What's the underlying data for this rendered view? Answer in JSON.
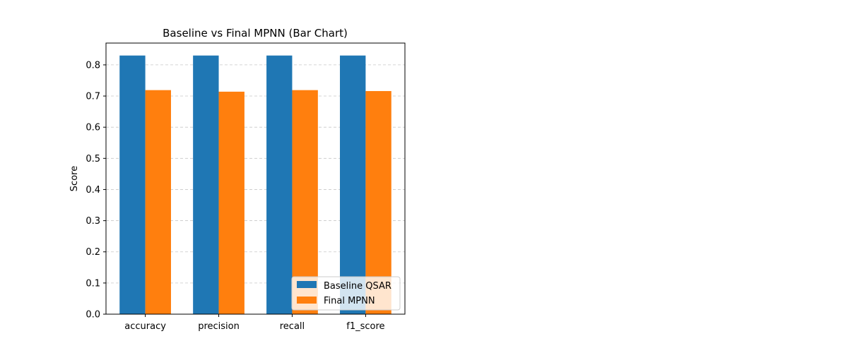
{
  "chart_data": {
    "type": "bar",
    "title": "Baseline vs Final MPNN (Bar Chart)",
    "xlabel": "",
    "ylabel": "Score",
    "categories": [
      "accuracy",
      "precision",
      "recall",
      "f1_score"
    ],
    "series": [
      {
        "name": "Baseline QSAR",
        "color": "#1f77b4",
        "values": [
          0.83,
          0.83,
          0.83,
          0.83
        ]
      },
      {
        "name": "Final MPNN",
        "color": "#ff7f0e",
        "values": [
          0.719,
          0.714,
          0.719,
          0.716
        ]
      }
    ],
    "ylim": [
      0,
      0.87
    ],
    "yticks": [
      "0.0",
      "0.1",
      "0.2",
      "0.3",
      "0.4",
      "0.5",
      "0.6",
      "0.7",
      "0.8"
    ],
    "grid": "y-dashed",
    "legend": "lower right"
  }
}
